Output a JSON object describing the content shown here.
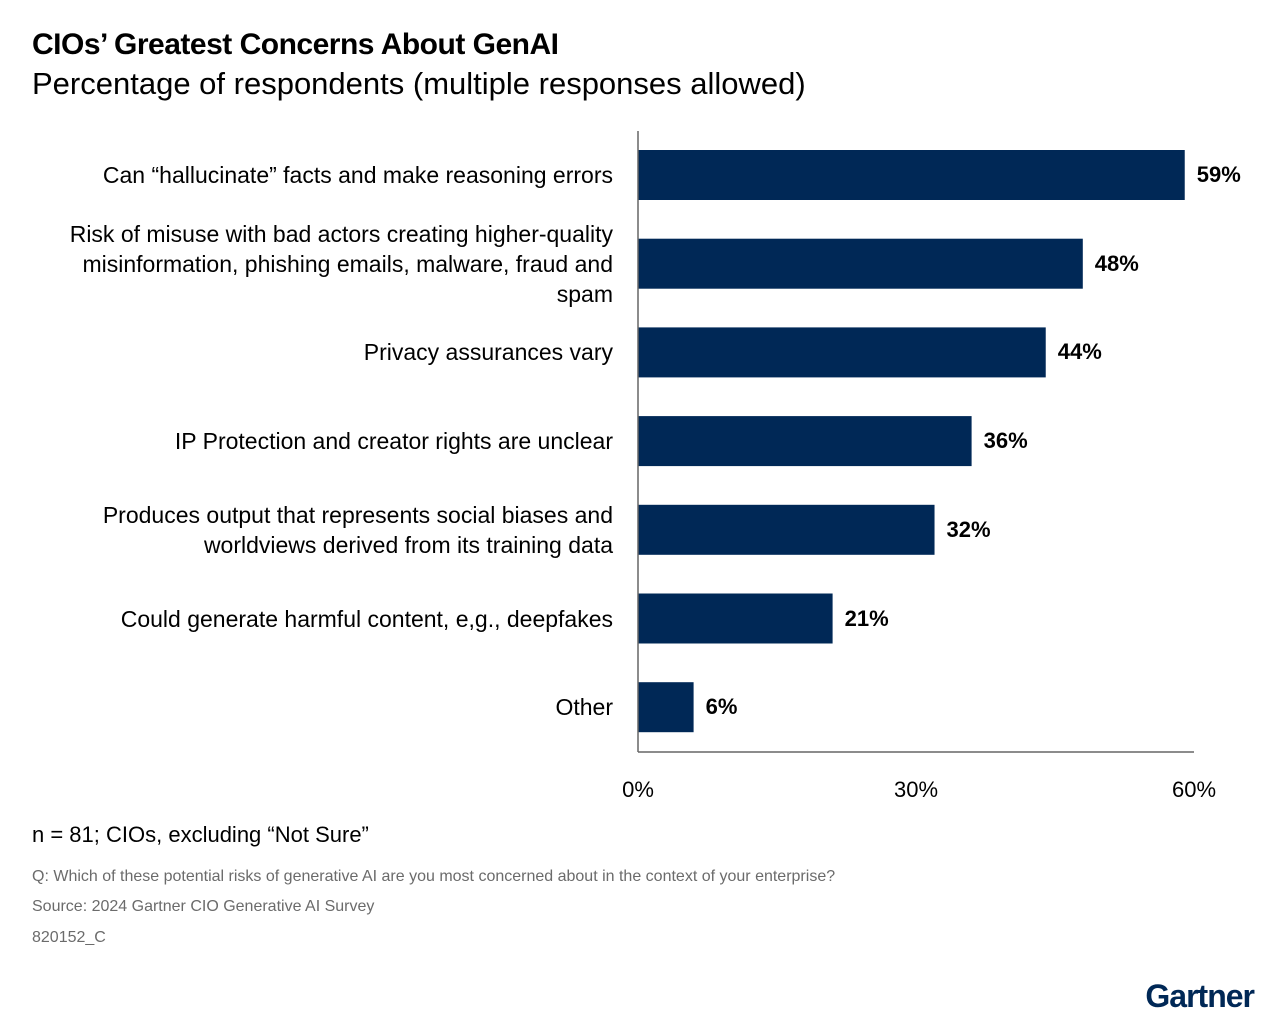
{
  "chart_data": {
    "type": "hbar",
    "title": "CIOs’ Greatest Concerns About GenAI",
    "subtitle": "Percentage of respondents (multiple responses allowed)",
    "categories": [
      "Can “hallucinate” facts and make reasoning errors",
      "Risk of misuse with bad actors creating higher-quality misinformation, phishing emails, malware, fraud and spam",
      "Privacy assurances vary",
      "IP Protection and creator rights are unclear",
      "Produces output that represents social biases and worldviews derived from its training data",
      "Could generate harmful content, e,g., deepfakes",
      "Other"
    ],
    "values": [
      59,
      48,
      44,
      36,
      32,
      21,
      6
    ],
    "value_labels": [
      "59%",
      "48%",
      "44%",
      "36%",
      "32%",
      "21%",
      "6%"
    ],
    "color": "#002856",
    "xlim": [
      0,
      60
    ],
    "xticks": [
      {
        "value": 0,
        "label": "0%"
      },
      {
        "value": 30,
        "label": "30%"
      },
      {
        "value": 60,
        "label": "60%"
      }
    ],
    "note": "n = 81; CIOs, excluding “Not Sure”",
    "question": "Q: Which of these potential risks of generative AI are you most concerned about in the context of your enterprise?",
    "source": "Source: 2024 Gartner CIO Generative AI Survey",
    "figure_id": "820152_C",
    "brand": "Gartner"
  }
}
